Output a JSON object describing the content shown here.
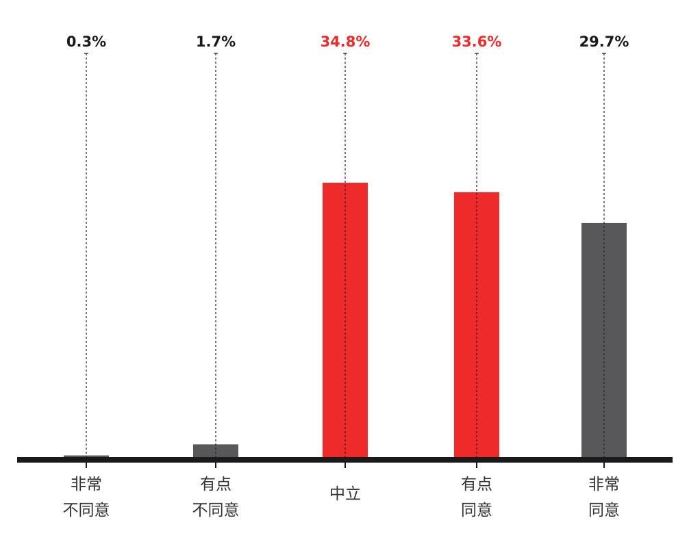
{
  "chart_data": {
    "type": "bar",
    "categories": [
      [
        "非常",
        "不同意"
      ],
      [
        "有点",
        "不同意"
      ],
      [
        "中立"
      ],
      [
        "有点",
        "同意"
      ],
      [
        "非常",
        "同意"
      ]
    ],
    "values": [
      0.3,
      1.7,
      34.8,
      33.6,
      29.7
    ],
    "value_labels": [
      "0.3%",
      "1.7%",
      "34.8%",
      "33.6%",
      "29.7%"
    ],
    "highlighted": [
      false,
      false,
      true,
      true,
      false
    ],
    "ylim": [
      0,
      35
    ],
    "grid": false,
    "legend": "none"
  },
  "colors": {
    "highlight": "#ee2a2a",
    "normal": "#58585a",
    "label_normal": "#1a1a1a",
    "axis": "#1a1a1a",
    "guide": "#222222"
  }
}
